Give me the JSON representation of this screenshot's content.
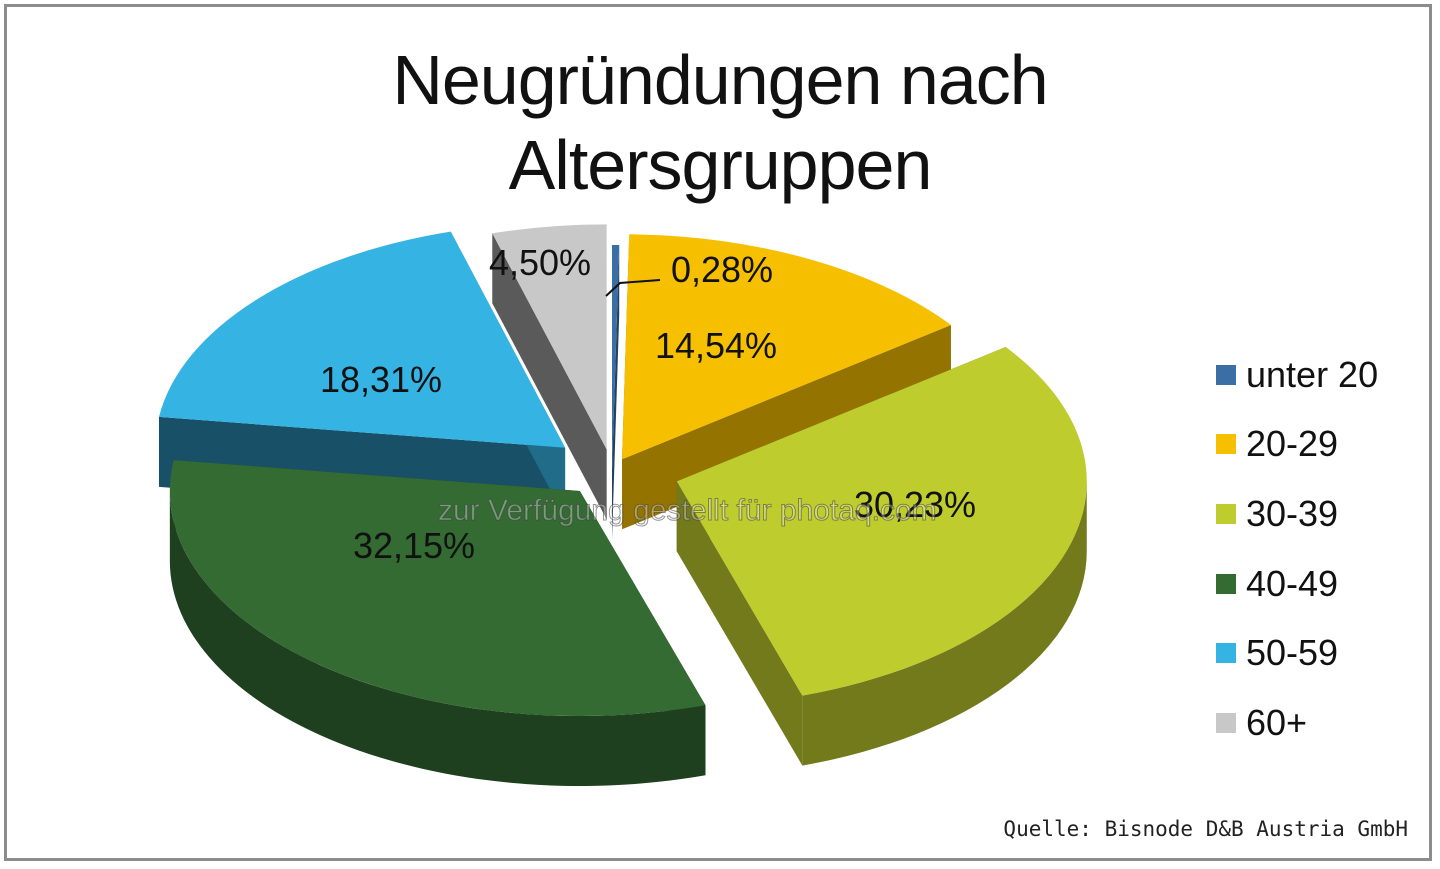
{
  "chart_data": {
    "type": "pie",
    "title_lines": [
      "Neugründungen nach",
      "Altersgruppen"
    ],
    "categories": [
      "unter 20",
      "20-29",
      "30-39",
      "40-49",
      "50-59",
      "60+"
    ],
    "values": [
      0.28,
      14.54,
      30.23,
      32.15,
      18.31,
      4.5
    ],
    "data_labels": [
      "0,28%",
      "14,54%",
      "30,23%",
      "32,15%",
      "18,31%",
      "4,50%"
    ],
    "colors": [
      "#3a6ea5",
      "#f6c000",
      "#bfcc2e",
      "#336b33",
      "#35b4e4",
      "#c8c8c8"
    ],
    "legend_position": "right",
    "style": "3d-exploded"
  },
  "source": "Quelle: Bisnode D&B Austria GmbH",
  "watermark": "zur Verfügung gestellt für photaq.com"
}
